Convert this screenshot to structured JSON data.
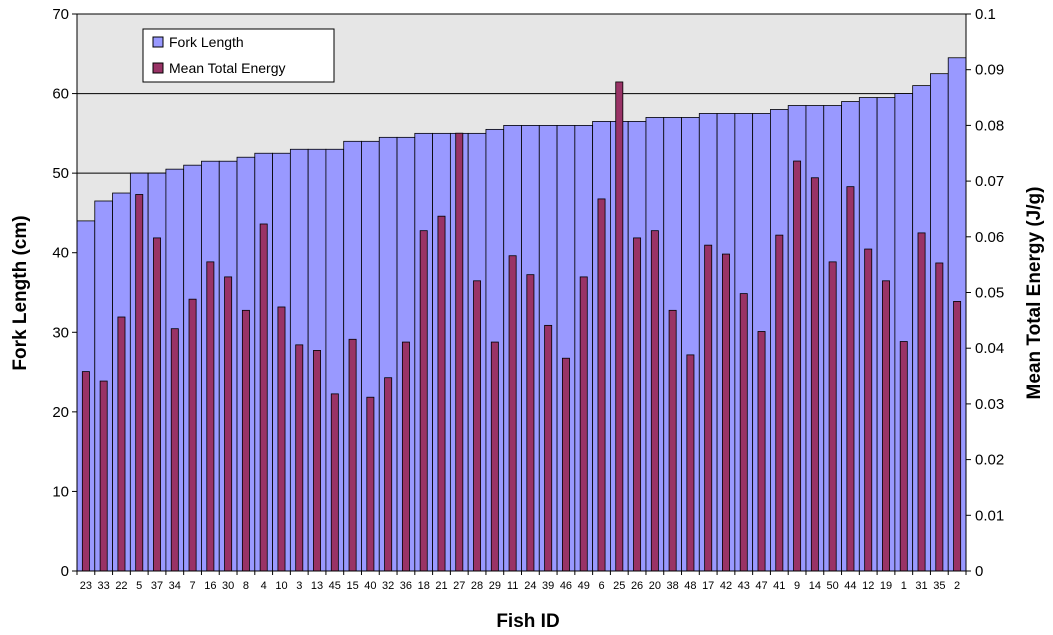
{
  "chart_data": {
    "type": "bar",
    "categories": [
      "23",
      "33",
      "22",
      "5",
      "37",
      "34",
      "7",
      "16",
      "30",
      "8",
      "4",
      "10",
      "3",
      "13",
      "45",
      "15",
      "40",
      "32",
      "36",
      "18",
      "21",
      "27",
      "28",
      "29",
      "11",
      "24",
      "39",
      "46",
      "49",
      "6",
      "25",
      "26",
      "20",
      "38",
      "48",
      "17",
      "42",
      "43",
      "47",
      "41",
      "9",
      "14",
      "50",
      "44",
      "12",
      "19",
      "1",
      "31",
      "35",
      "2"
    ],
    "series": [
      {
        "name": "Fork Length",
        "axis": "left",
        "color": "#9999ff",
        "values": [
          44,
          46.5,
          47.5,
          50,
          50,
          50.5,
          51,
          51.5,
          51.5,
          52,
          52.5,
          52.5,
          53,
          53,
          53,
          54,
          54,
          54.5,
          54.5,
          55,
          55,
          55,
          55,
          55.5,
          56,
          56,
          56,
          56,
          56,
          56.5,
          56.5,
          56.5,
          57,
          57,
          57,
          57.5,
          57.5,
          57.5,
          57.5,
          58,
          58.5,
          58.5,
          58.5,
          59,
          59.5,
          59.5,
          60,
          61,
          62.5,
          64.5
        ]
      },
      {
        "name": "Mean Total Energy",
        "axis": "right",
        "color": "#993366",
        "values": [
          0.0358,
          0.0341,
          0.0456,
          0.0676,
          0.0598,
          0.0435,
          0.0488,
          0.0555,
          0.0528,
          0.0468,
          0.0623,
          0.0474,
          0.0406,
          0.0396,
          0.0318,
          0.0416,
          0.0312,
          0.0347,
          0.0411,
          0.0611,
          0.0637,
          0.0786,
          0.0521,
          0.0411,
          0.0566,
          0.0532,
          0.0441,
          0.0382,
          0.0528,
          0.0668,
          0.0878,
          0.0598,
          0.0611,
          0.0468,
          0.0388,
          0.0585,
          0.0569,
          0.0498,
          0.043,
          0.0603,
          0.0736,
          0.0706,
          0.0555,
          0.069,
          0.0578,
          0.0521,
          0.0412,
          0.0607,
          0.0553,
          0.0484
        ]
      }
    ],
    "xlabel": "Fish ID",
    "ylabel": "Fork Length (cm)",
    "y2label": "Mean Total Energy (J/g)",
    "ylim": [
      0,
      70
    ],
    "y2lim": [
      0,
      0.1
    ],
    "yticks": [
      "0",
      "10",
      "20",
      "30",
      "40",
      "50",
      "60",
      "70"
    ],
    "y2ticks": [
      "0",
      "0.01",
      "0.02",
      "0.03",
      "0.04",
      "0.05",
      "0.06",
      "0.07",
      "0.08",
      "0.09",
      "0.1"
    ],
    "grid": true,
    "plot_background": "#e6e6e6",
    "legend_position": "top-left"
  }
}
